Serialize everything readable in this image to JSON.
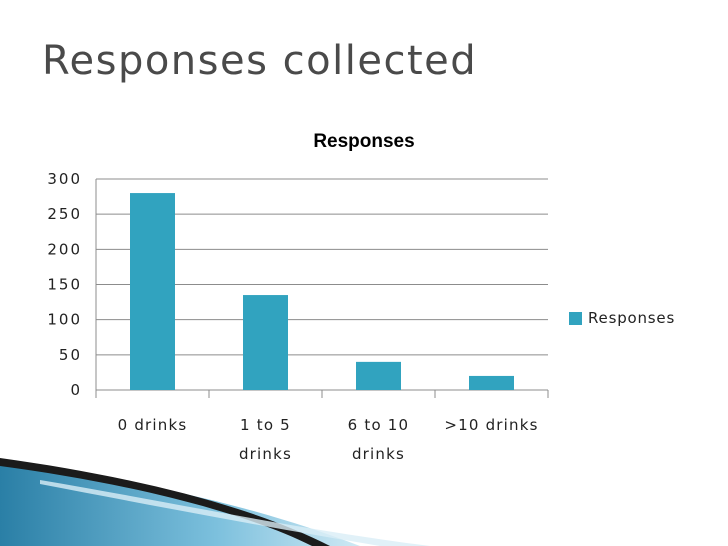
{
  "slide": {
    "title": "Responses collected"
  },
  "colors": {
    "bar": "#31A3BF",
    "grid": "#8c8c8c",
    "text": "#222222"
  },
  "chart_data": {
    "type": "bar",
    "title": "Responses",
    "categories": [
      [
        "0 drinks"
      ],
      [
        "1 to 5",
        "drinks"
      ],
      [
        "6 to 10",
        "drinks"
      ],
      [
        ">10 drinks"
      ]
    ],
    "series": [
      {
        "name": "Responses",
        "values": [
          280,
          135,
          40,
          20
        ]
      }
    ],
    "ylim": [
      0,
      300
    ],
    "yticks": [
      "0",
      "50",
      "100",
      "150",
      "200",
      "250",
      "300"
    ],
    "grid": true,
    "legend": "right"
  }
}
